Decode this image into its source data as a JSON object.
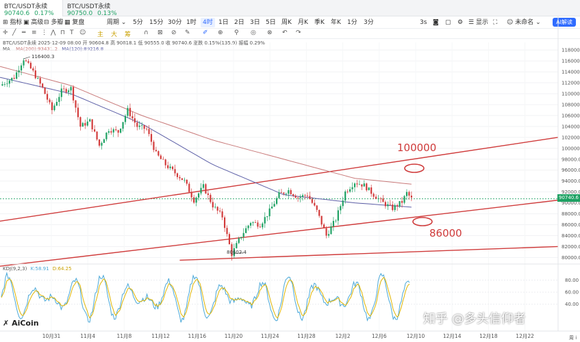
{
  "tabs": [
    {
      "name": "BTC/USDT永续",
      "price": "90740.6",
      "change": "0.17%",
      "active": true
    },
    {
      "name": "BTC/USDT永续",
      "price": "90750.0",
      "change": "0.13%",
      "active": false
    }
  ],
  "toolbar1": {
    "items": [
      "指标",
      "高级",
      "多瓣",
      "复盘",
      "周期",
      "5分",
      "15分",
      "30分",
      "1时",
      "4时",
      "1日",
      "2日",
      "3日",
      "5日",
      "周K",
      "月K",
      "季K",
      "年K",
      "1分",
      "3分"
    ],
    "active": "4时",
    "right": [
      "3s",
      "显示",
      "未命名"
    ],
    "ai_label": "AI解读"
  },
  "toolbar2": {
    "draw_labels": [
      "主",
      "大",
      "筹"
    ]
  },
  "chart_info": {
    "line1": "BTC/USDT永续 2025-12-09 08:00 开 90604.8 高 90818.1 低 90555.0 收 90740.6 涨跌 0.15%(135.9) 振幅 0.29%",
    "ma200": "MA(200):93431.2",
    "ma120": "MA(120):89216.8",
    "ma_prefix": "MA",
    "high_label": "116400.3",
    "low_label": "80602.4",
    "current_price": "90740.6",
    "annotation_upper": "100000",
    "annotation_lower": "86000",
    "kdj_label": "KDJ(9,2,3)",
    "kdj_k": "K:58.91",
    "kdj_d": "D:64.25",
    "brand": "AiCoin",
    "watermark": "知乎 @多头信仰者",
    "week_label": "周 i"
  },
  "colors": {
    "up": "#1ea163",
    "down": "#d23b3b",
    "ma200": "#c87878",
    "ma120": "#5b5ea6",
    "channel": "#cf3a3a",
    "k_line": "#4aa8d8",
    "d_line": "#e0b400"
  },
  "chart_data": {
    "type": "candlestick",
    "y_axis_ticks": [
      118000,
      116000,
      114000,
      112000,
      110000,
      108000,
      106000,
      104000,
      102000,
      100000,
      98000,
      96000,
      94000,
      92000,
      90000,
      88000,
      86000,
      84000,
      82000,
      80000
    ],
    "y_axis_labels": [
      "118000.0",
      "116000.0",
      "114000.0",
      "112000.0",
      "110000.0",
      "108000.0",
      "106000.0",
      "104000.0",
      "102000.0",
      "100000.0",
      "98000.0",
      "96000.0",
      "94000.0",
      "92000.0",
      "90000.0",
      "88000.0",
      "86000.0",
      "84000.0",
      "82000.0",
      "80000.0"
    ],
    "x_axis_labels": [
      "10月31",
      "11月4",
      "11月8",
      "11月12",
      "11月16",
      "11月20",
      "11月24",
      "11月28",
      "12月2",
      "12月6",
      "12月10",
      "12月14",
      "12月18",
      "12月22"
    ],
    "kdj_ticks": [
      "80.00",
      "60.00",
      "40.00"
    ],
    "price_path": [
      [
        0,
        111500
      ],
      [
        3,
        113000
      ],
      [
        5,
        116400.3
      ],
      [
        7,
        114000
      ],
      [
        9,
        111000
      ],
      [
        11,
        107000
      ],
      [
        13,
        110500
      ],
      [
        15,
        111000
      ],
      [
        17,
        104000
      ],
      [
        19,
        105000
      ],
      [
        21,
        100500
      ],
      [
        23,
        103500
      ],
      [
        25,
        103000
      ],
      [
        27,
        107000
      ],
      [
        29,
        104000
      ],
      [
        31,
        103500
      ],
      [
        33,
        99000
      ],
      [
        35,
        97000
      ],
      [
        37,
        95500
      ],
      [
        39,
        94000
      ],
      [
        41,
        90500
      ],
      [
        43,
        93000
      ],
      [
        45,
        89500
      ],
      [
        47,
        87500
      ],
      [
        49,
        80602.4
      ],
      [
        51,
        84000
      ],
      [
        53,
        86500
      ],
      [
        55,
        86000
      ],
      [
        57,
        88500
      ],
      [
        59,
        91500
      ],
      [
        61,
        92300
      ],
      [
        63,
        91000
      ],
      [
        65,
        91500
      ],
      [
        67,
        88500
      ],
      [
        69,
        84000
      ],
      [
        71,
        87000
      ],
      [
        73,
        92000
      ],
      [
        75,
        93800
      ],
      [
        77,
        93200
      ],
      [
        79,
        91500
      ],
      [
        81,
        90000
      ],
      [
        83,
        89000
      ],
      [
        85,
        90200
      ],
      [
        86,
        91800
      ],
      [
        87,
        90740.6
      ]
    ],
    "ma200": [
      [
        0,
        115000
      ],
      [
        15,
        111500
      ],
      [
        30,
        106000
      ],
      [
        45,
        101500
      ],
      [
        60,
        98000
      ],
      [
        75,
        94500
      ],
      [
        87,
        93431.2
      ]
    ],
    "ma120": [
      [
        0,
        113000
      ],
      [
        15,
        110000
      ],
      [
        30,
        104500
      ],
      [
        45,
        97000
      ],
      [
        60,
        91500
      ],
      [
        75,
        90000
      ],
      [
        87,
        89216.8
      ]
    ],
    "channel_upper": [
      [
        -2,
        86400
      ],
      [
        118,
        102000
      ]
    ],
    "channel_middle": [
      [
        -2,
        78200
      ],
      [
        118,
        90500
      ]
    ],
    "channel_lower": [
      [
        38,
        79500
      ],
      [
        118,
        82000
      ]
    ]
  }
}
